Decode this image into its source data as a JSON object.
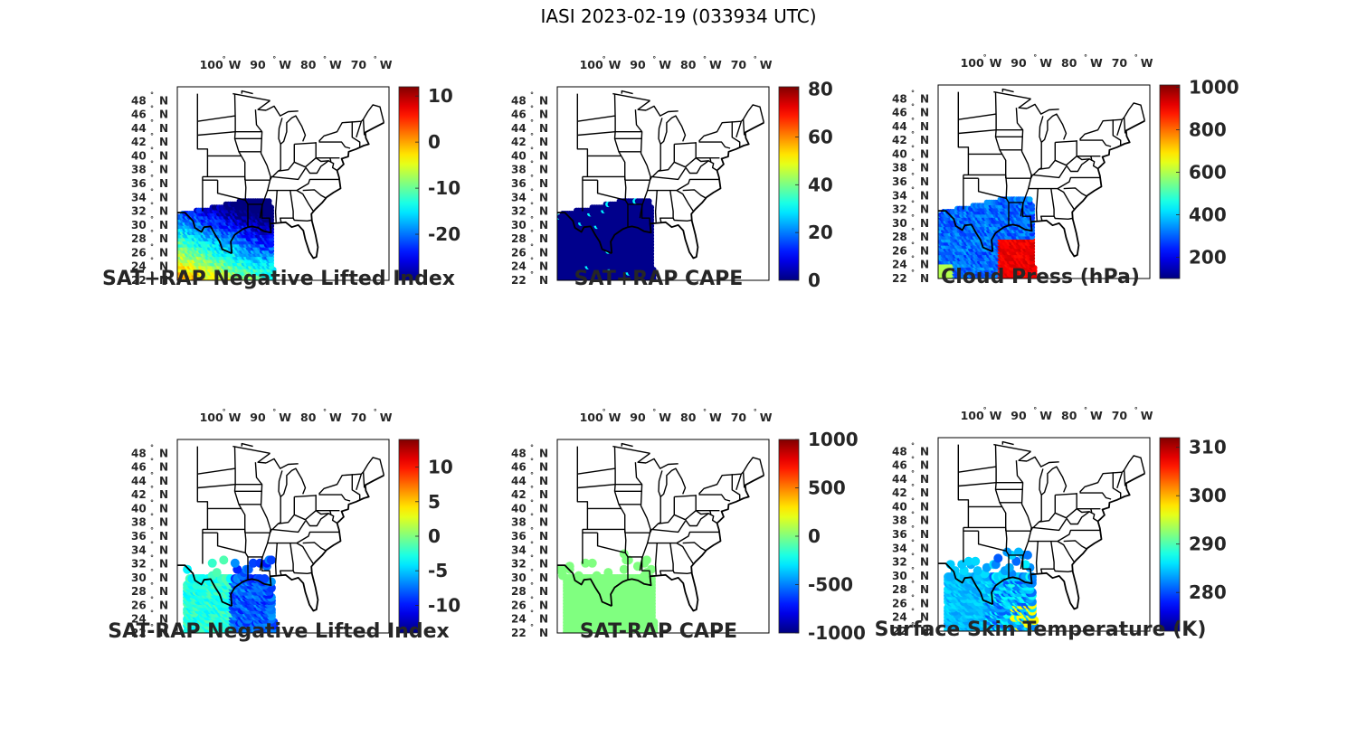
{
  "figure_title": "IASI 2023-02-19 (033934 UTC)",
  "lon_labels": [
    "100",
    "90",
    "80",
    "70"
  ],
  "lon_hemisphere": "W",
  "lat_labels": [
    "48",
    "46",
    "44",
    "42",
    "40",
    "38",
    "36",
    "34",
    "32",
    "30",
    "28",
    "26",
    "24",
    "22"
  ],
  "lat_hemisphere": "N",
  "degree_symbol": "°",
  "map_extent": {
    "lon_min": -108,
    "lon_max": -66,
    "lat_min": 22,
    "lat_max": 50
  },
  "colormap": "jet",
  "panels": [
    {
      "title": "SAT+RAP Negative Lifted Index",
      "colorbar_ticks": [
        "10",
        "0",
        "-10",
        "-20"
      ],
      "colorbar_range": [
        -30,
        12
      ],
      "color_variable": "field_yellow_south_blue_north"
    },
    {
      "title": "SAT+RAP CAPE",
      "colorbar_ticks": [
        "80",
        "60",
        "40",
        "20",
        "0"
      ],
      "colorbar_range": [
        0,
        81
      ],
      "color_variable": "near_zero_everywhere"
    },
    {
      "title": "Cloud Press (hPa)",
      "colorbar_ticks": [
        "1000",
        "800",
        "600",
        "400",
        "200"
      ],
      "colorbar_range": [
        100,
        1010
      ],
      "color_variable": "low_west_high_southeast"
    },
    {
      "title": "SAT-RAP Negative Lifted Index",
      "colorbar_ticks": [
        "10",
        "5",
        "0",
        "-5",
        "-10"
      ],
      "colorbar_range": [
        -14,
        14
      ],
      "color_variable": "cyan_blue_scattered"
    },
    {
      "title": "SAT-RAP CAPE",
      "colorbar_ticks": [
        "1000",
        "500",
        "0",
        "-500",
        "-1000"
      ],
      "colorbar_range": [
        -1000,
        1000
      ],
      "color_variable": "near_zero_green"
    },
    {
      "title": "Surface Skin Temperature (K)",
      "colorbar_ticks": [
        "310",
        "300",
        "290",
        "280"
      ],
      "colorbar_range": [
        272,
        312
      ],
      "color_variable": "blue_cyan_mixed"
    }
  ]
}
